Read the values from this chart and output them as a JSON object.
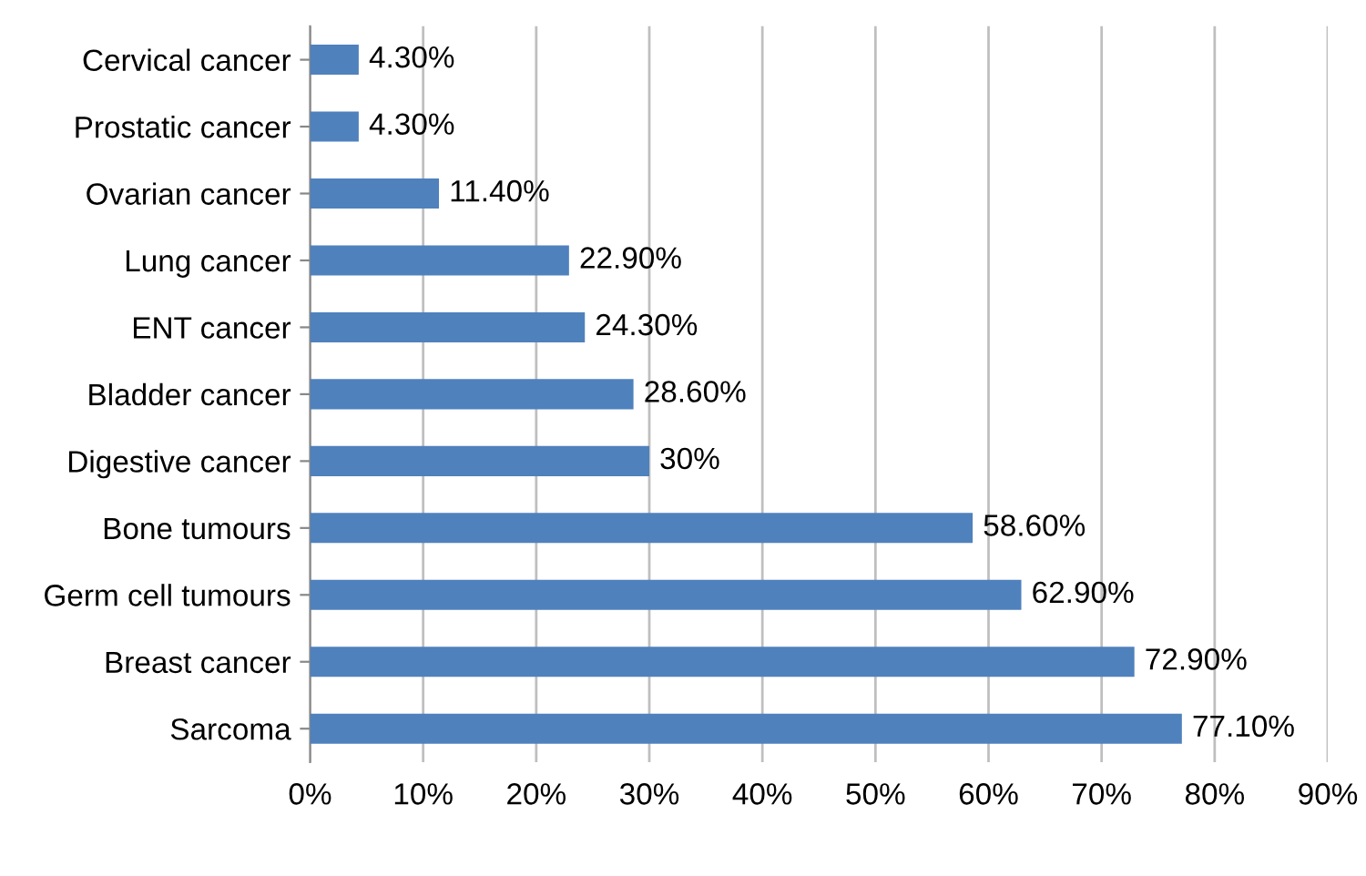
{
  "chart_data": {
    "type": "bar",
    "orientation": "horizontal",
    "categories": [
      "Cervical cancer",
      "Prostatic cancer",
      "Ovarian cancer",
      "Lung cancer",
      "ENT cancer",
      "Bladder cancer",
      "Digestive cancer",
      "Bone tumours",
      "Germ cell tumours",
      "Breast cancer",
      "Sarcoma"
    ],
    "values": [
      4.3,
      4.3,
      11.4,
      22.9,
      24.3,
      28.6,
      30,
      58.6,
      62.9,
      72.9,
      77.1
    ],
    "value_labels": [
      "4.30%",
      "4.30%",
      "11.40%",
      "22.90%",
      "24.30%",
      "28.60%",
      "30%",
      "58.60%",
      "62.90%",
      "72.90%",
      "77.10%"
    ],
    "color": "#4f81bd",
    "xlim": [
      0,
      90
    ],
    "xticks": [
      {
        "value": 0,
        "label": "0%"
      },
      {
        "value": 10,
        "label": "10%"
      },
      {
        "value": 20,
        "label": "20%"
      },
      {
        "value": 30,
        "label": "30%"
      },
      {
        "value": 40,
        "label": "40%"
      },
      {
        "value": 50,
        "label": "50%"
      },
      {
        "value": 60,
        "label": "60%"
      },
      {
        "value": 70,
        "label": "70%"
      },
      {
        "value": 80,
        "label": "80%"
      },
      {
        "value": 90,
        "label": "90%"
      }
    ],
    "grid": "x",
    "legend": false
  }
}
